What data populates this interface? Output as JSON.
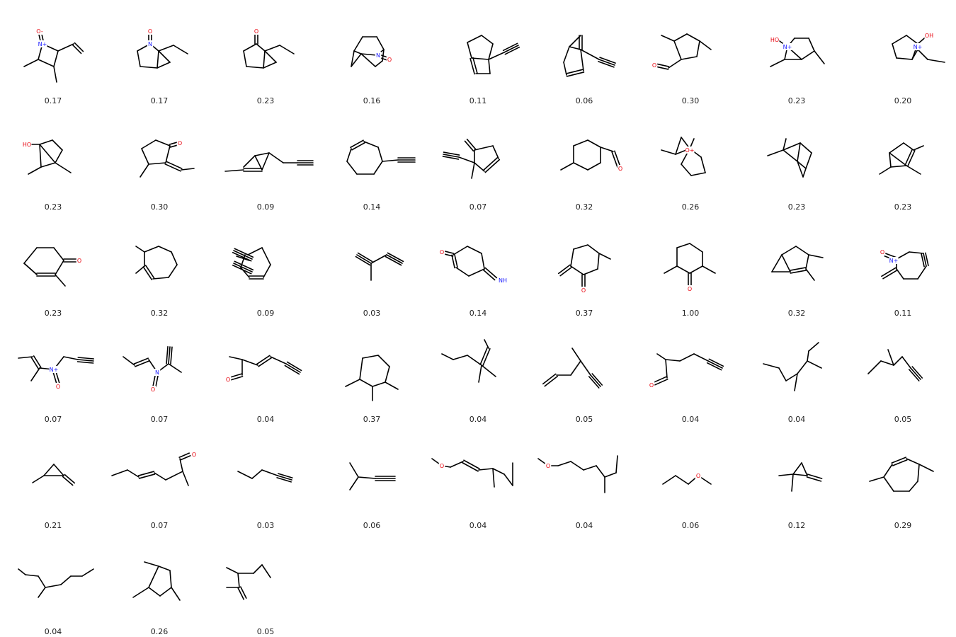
{
  "molecules": [
    {
      "score": "0.17",
      "atoms": {
        "N": "N+",
        "O": "O-"
      }
    },
    {
      "score": "0.17",
      "atoms": {
        "N": "N",
        "O": "O"
      }
    },
    {
      "score": "0.23",
      "atoms": {
        "O": "O"
      }
    },
    {
      "score": "0.16",
      "atoms": {
        "N": "N",
        "O": "O"
      }
    },
    {
      "score": "0.11"
    },
    {
      "score": "0.06"
    },
    {
      "score": "0.30",
      "atoms": {
        "O": "O"
      }
    },
    {
      "score": "0.23",
      "atoms": {
        "HO": "HO",
        "N": "N+"
      }
    },
    {
      "score": "0.20",
      "atoms": {
        "OH": "OH",
        "N": "N+"
      }
    },
    {
      "score": "0.23",
      "atoms": {
        "HO": "HO"
      }
    },
    {
      "score": "0.30",
      "atoms": {
        "O": "O"
      }
    },
    {
      "score": "0.09"
    },
    {
      "score": "0.14"
    },
    {
      "score": "0.07"
    },
    {
      "score": "0.32",
      "atoms": {
        "O": "O"
      }
    },
    {
      "score": "0.26",
      "atoms": {
        "O": "O+"
      }
    },
    {
      "score": "0.23"
    },
    {
      "score": "0.23"
    },
    {
      "score": "0.23",
      "atoms": {
        "O": "O"
      }
    },
    {
      "score": "0.32"
    },
    {
      "score": "0.09"
    },
    {
      "score": "0.03"
    },
    {
      "score": "0.14",
      "atoms": {
        "O": "O",
        "NH": "NH"
      }
    },
    {
      "score": "0.37",
      "atoms": {
        "O": "O"
      }
    },
    {
      "score": "1.00",
      "atoms": {
        "O": "O"
      }
    },
    {
      "score": "0.32"
    },
    {
      "score": "0.11",
      "atoms": {
        "O": "O",
        "N": "N+"
      }
    },
    {
      "score": "0.07",
      "atoms": {
        "N": "N+",
        "O": "O"
      }
    },
    {
      "score": "0.07",
      "atoms": {
        "N": "N",
        "O": "O"
      }
    },
    {
      "score": "0.04",
      "atoms": {
        "O": "O"
      }
    },
    {
      "score": "0.37"
    },
    {
      "score": "0.04"
    },
    {
      "score": "0.05"
    },
    {
      "score": "0.04",
      "atoms": {
        "O": "O"
      }
    },
    {
      "score": "0.04"
    },
    {
      "score": "0.05"
    },
    {
      "score": "0.21"
    },
    {
      "score": "0.07",
      "atoms": {
        "O": "O"
      }
    },
    {
      "score": "0.03"
    },
    {
      "score": "0.06"
    },
    {
      "score": "0.04",
      "atoms": {
        "O": "O"
      }
    },
    {
      "score": "0.04",
      "atoms": {
        "O": "O"
      }
    },
    {
      "score": "0.06",
      "atoms": {
        "O": "O"
      }
    },
    {
      "score": "0.12"
    },
    {
      "score": "0.29"
    },
    {
      "score": "0.04"
    },
    {
      "score": "0.26"
    },
    {
      "score": "0.05"
    }
  ]
}
